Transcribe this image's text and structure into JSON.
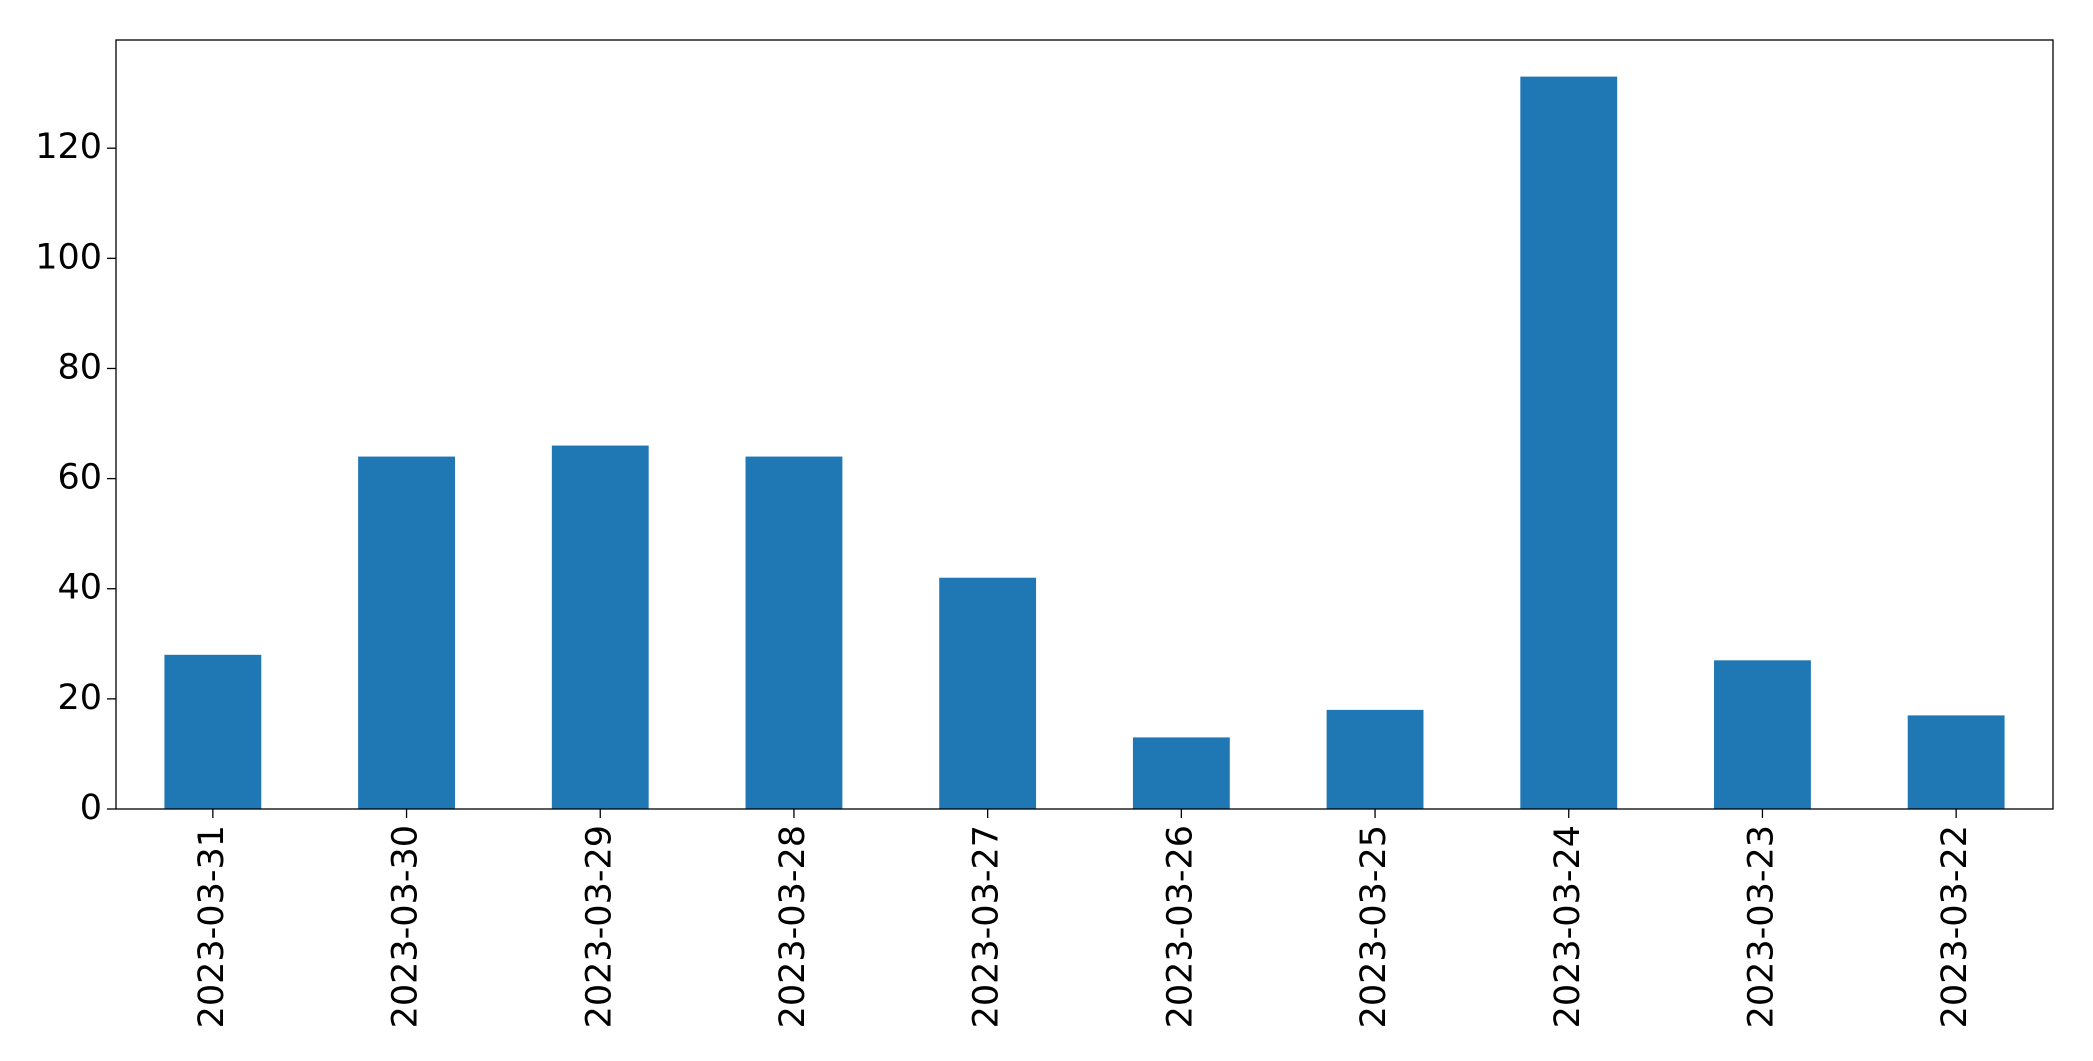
{
  "chart_data": {
    "type": "bar",
    "categories": [
      "2023-03-31",
      "2023-03-30",
      "2023-03-29",
      "2023-03-28",
      "2023-03-27",
      "2023-03-26",
      "2023-03-25",
      "2023-03-24",
      "2023-03-23",
      "2023-03-22"
    ],
    "values": [
      28,
      64,
      66,
      64,
      42,
      13,
      18,
      133,
      27,
      17
    ],
    "color": "#1f77b4",
    "ylim": [
      0,
      139.65
    ],
    "yticks": [
      0,
      20,
      40,
      60,
      80,
      100,
      120
    ],
    "grid": false
  }
}
